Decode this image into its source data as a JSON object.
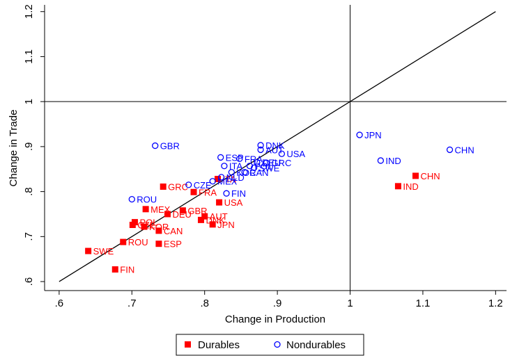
{
  "chart_data": {
    "type": "scatter",
    "xlabel": "Change in Production",
    "ylabel": "Change in Trade",
    "xlim": [
      0.58,
      1.215
    ],
    "ylim": [
      0.58,
      1.215
    ],
    "x_ticks": [
      0.6,
      0.7,
      0.8,
      0.9,
      1,
      1.1,
      1.2
    ],
    "x_tick_labels": [
      ".6",
      ".7",
      ".8",
      ".9",
      "1",
      "1.1",
      "1.2"
    ],
    "y_ticks": [
      0.6,
      0.7,
      0.8,
      0.9,
      1,
      1.1,
      1.2
    ],
    "y_tick_labels": [
      ".6",
      ".7",
      ".8",
      ".9",
      "1",
      "1.1",
      "1.2"
    ],
    "reference_lines": {
      "diagonal": [
        [
          0.6,
          0.6
        ],
        [
          1.2,
          1.2
        ]
      ],
      "vertical_x": 1,
      "horizontal_y": 1
    },
    "legend_position": "bottom",
    "series": [
      {
        "name": "Durables",
        "marker": "filled-square",
        "color": "#ff0000",
        "points": [
          {
            "label": "CHN",
            "x": 1.09,
            "y": 0.835
          },
          {
            "label": "IND",
            "x": 1.066,
            "y": 0.812
          },
          {
            "label": "GRC",
            "x": 0.743,
            "y": 0.811
          },
          {
            "label": "ITA",
            "x": 0.818,
            "y": 0.828
          },
          {
            "label": "FRA",
            "x": 0.785,
            "y": 0.799
          },
          {
            "label": "USA",
            "x": 0.82,
            "y": 0.776
          },
          {
            "label": "MEX",
            "x": 0.719,
            "y": 0.761
          },
          {
            "label": "GBR",
            "x": 0.77,
            "y": 0.758
          },
          {
            "label": "DEU",
            "x": 0.749,
            "y": 0.75
          },
          {
            "label": "AUT",
            "x": 0.8,
            "y": 0.745
          },
          {
            "label": "DNK",
            "x": 0.795,
            "y": 0.737
          },
          {
            "label": "POL",
            "x": 0.704,
            "y": 0.732
          },
          {
            "label": "JPN",
            "x": 0.811,
            "y": 0.727
          },
          {
            "label": "CZE",
            "x": 0.701,
            "y": 0.726
          },
          {
            "label": "KOR",
            "x": 0.717,
            "y": 0.722
          },
          {
            "label": "CAN",
            "x": 0.737,
            "y": 0.713
          },
          {
            "label": "ROU",
            "x": 0.688,
            "y": 0.688
          },
          {
            "label": "ESP",
            "x": 0.737,
            "y": 0.684
          },
          {
            "label": "SWE",
            "x": 0.64,
            "y": 0.668
          },
          {
            "label": "FIN",
            "x": 0.677,
            "y": 0.627
          }
        ]
      },
      {
        "name": "Nondurables",
        "marker": "hollow-circle",
        "color": "#0000ff",
        "points": [
          {
            "label": "JPN",
            "x": 1.013,
            "y": 0.926
          },
          {
            "label": "CHN",
            "x": 1.137,
            "y": 0.893
          },
          {
            "label": "IND",
            "x": 1.042,
            "y": 0.869
          },
          {
            "label": "GBR",
            "x": 0.732,
            "y": 0.902
          },
          {
            "label": "DNK",
            "x": 0.877,
            "y": 0.903
          },
          {
            "label": "AUT",
            "x": 0.877,
            "y": 0.893
          },
          {
            "label": "USA",
            "x": 0.906,
            "y": 0.884
          },
          {
            "label": "ESP",
            "x": 0.822,
            "y": 0.876
          },
          {
            "label": "FRA",
            "x": 0.848,
            "y": 0.873
          },
          {
            "label": "DEU",
            "x": 0.872,
            "y": 0.865
          },
          {
            "label": "GRC",
            "x": 0.885,
            "y": 0.864
          },
          {
            "label": "ITA",
            "x": 0.827,
            "y": 0.857
          },
          {
            "label": "POL",
            "x": 0.862,
            "y": 0.857
          },
          {
            "label": "SWE",
            "x": 0.868,
            "y": 0.853
          },
          {
            "label": "KOR",
            "x": 0.837,
            "y": 0.843
          },
          {
            "label": "CAN",
            "x": 0.855,
            "y": 0.843
          },
          {
            "label": "NLD",
            "x": 0.823,
            "y": 0.832
          },
          {
            "label": "MEX",
            "x": 0.811,
            "y": 0.823
          },
          {
            "label": "CZE",
            "x": 0.778,
            "y": 0.815
          },
          {
            "label": "ROU",
            "x": 0.7,
            "y": 0.783
          },
          {
            "label": "FIN",
            "x": 0.83,
            "y": 0.796
          }
        ]
      }
    ]
  }
}
